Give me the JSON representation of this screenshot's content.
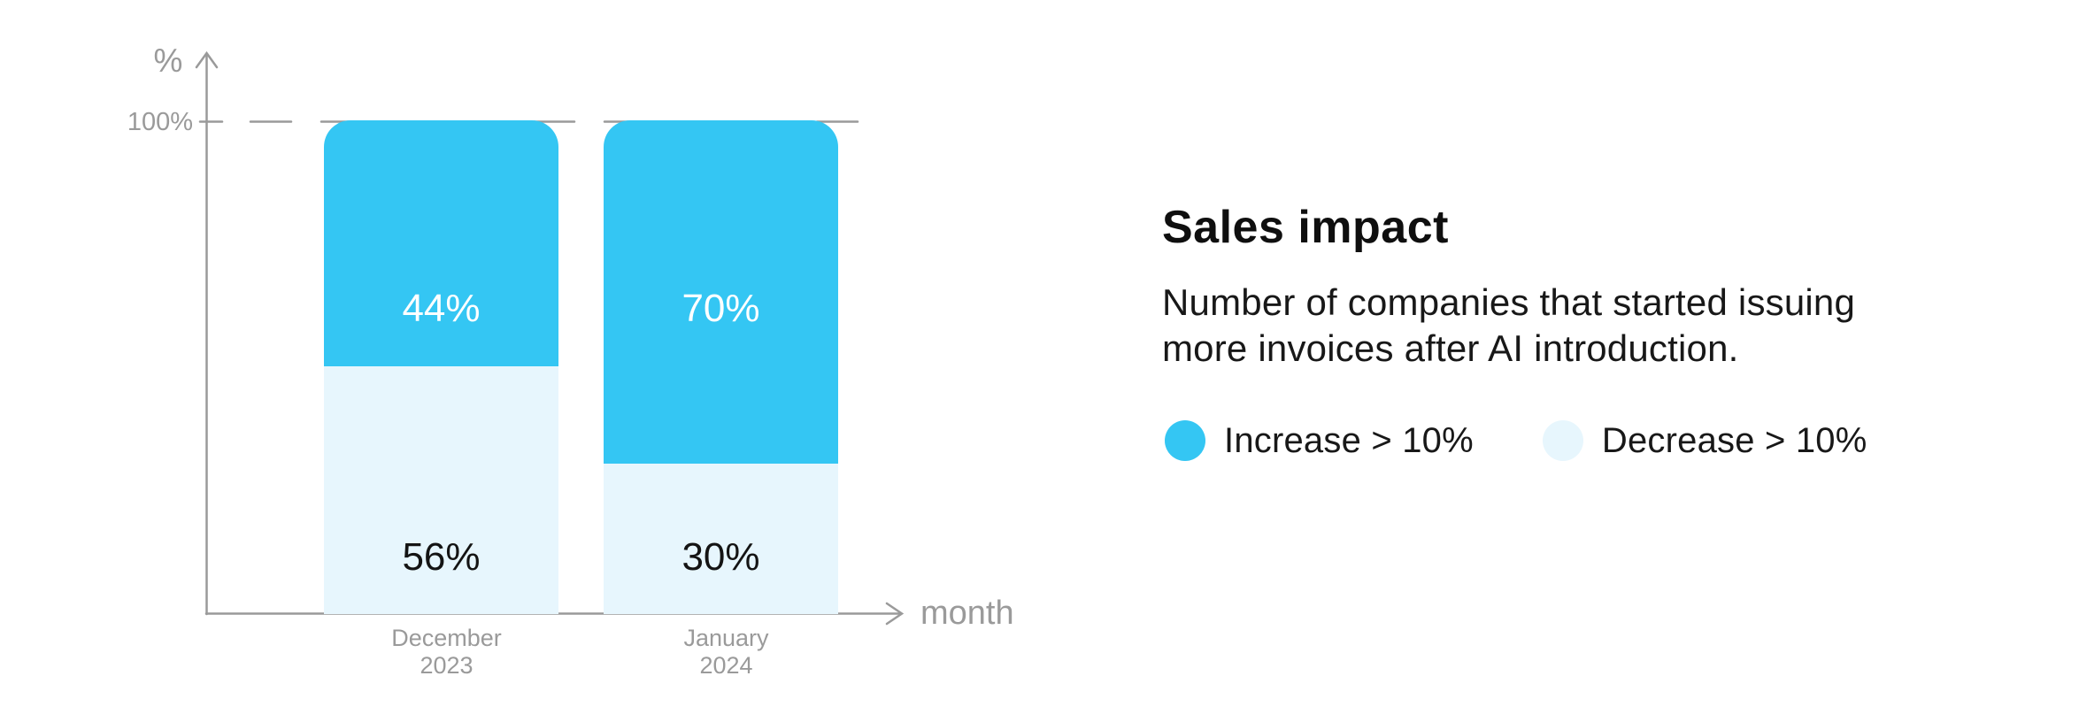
{
  "chart": {
    "y_axis_unit": "%",
    "y_tick_label": "100%",
    "x_axis_label": "month",
    "axis_color": "#9a9a9a",
    "gridline_color": "#9a9a9a"
  },
  "chart_data": {
    "type": "bar",
    "stacked": true,
    "title": "Sales impact",
    "categories": [
      {
        "line1": "December",
        "line2": "2023"
      },
      {
        "line1": "January",
        "line2": "2024"
      }
    ],
    "series": [
      {
        "name": "Increase > 10%",
        "color": "#34c6f3",
        "values": [
          44,
          70
        ],
        "value_labels": [
          "44%",
          "70%"
        ]
      },
      {
        "name": "Decrease > 10%",
        "color": "#e7f6fd",
        "values": [
          56,
          30
        ],
        "value_labels": [
          "56%",
          "30%"
        ]
      }
    ],
    "xlabel": "month",
    "ylabel": "%",
    "ylim": [
      0,
      100
    ],
    "yticks": [
      {
        "value": 100,
        "label": "100%"
      }
    ],
    "gridline": {
      "at": 100,
      "style": "dashed"
    },
    "value_labels_position": "inside",
    "legend_position": "right-panel",
    "layout_hints": {
      "drawn_top_fraction": [
        0.498,
        0.695
      ],
      "bar_corner_radius_top": 30,
      "grid": "single dashed line at 100% behind bars"
    }
  },
  "panel": {
    "title": "Sales impact",
    "description_lines": [
      "Number of companies that started issuing",
      "more invoices after AI introduction."
    ],
    "legend": [
      {
        "label": "Increase > 10%",
        "color": "#34c6f3"
      },
      {
        "label": "Decrease > 10%",
        "color": "#e7f6fd"
      }
    ]
  },
  "colors": {
    "background": "#ffffff",
    "accent_blue": "#34c6f3",
    "accent_light_blue": "#e7f6fd",
    "axis_gray": "#9a9a9a",
    "text_dark": "#141414",
    "bar_label_light": "#ffffff"
  }
}
